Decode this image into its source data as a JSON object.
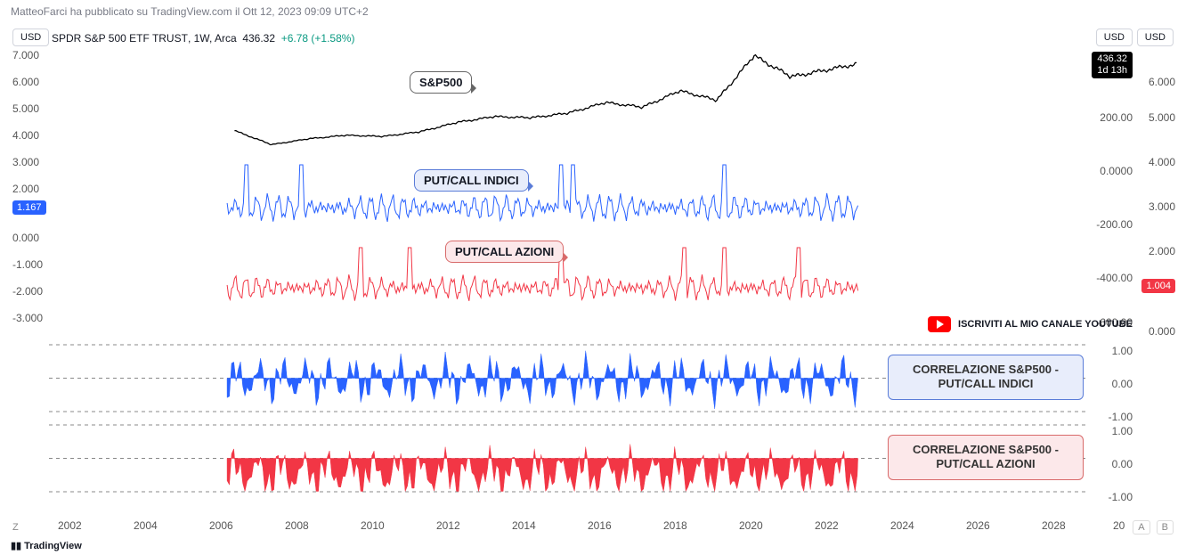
{
  "header": {
    "publisher": "MatteoFarci",
    "text_mid": " ha pubblicato su ",
    "site": "TradingView.com",
    "text_end": " il Ott 12, 2023 09:09 UTC+2"
  },
  "symbol_line": {
    "name": "SPDR S&P 500 ETF TRUST",
    "interval": "1W",
    "exchange": "Arca",
    "last": "436.32",
    "change": "+6.78",
    "pct": "(+1.58%)"
  },
  "badges": {
    "usd": "USD",
    "price_main": "436.32",
    "price_sub": "1d 13h",
    "left_blue": "1.167",
    "right_red": "1.004"
  },
  "callouts": {
    "sp500": "S&P500",
    "pc_indici": "PUT/CALL INDICI",
    "pc_azioni": "PUT/CALL AZIONI"
  },
  "youtube_text": "ISCRIVITI AL MIO CANALE YOUTUBE",
  "corr_labels": {
    "indici": "CORRELAZIONE S&P500 - PUT/CALL INDICI",
    "azioni": "CORRELAZIONE S&P500 - PUT/CALL AZIONI"
  },
  "left_axis": {
    "ticks": [
      "7.000",
      "6.000",
      "5.000",
      "4.000",
      "3.000",
      "2.000",
      "0.000",
      "-1.000",
      "-2.000",
      "-3.000"
    ],
    "positions": [
      55,
      85,
      115,
      145,
      175,
      205,
      260,
      290,
      320,
      350
    ]
  },
  "right_axis1": {
    "ticks": [
      "6.000",
      "5.000",
      "4.000",
      "3.000",
      "2.000",
      "0.000"
    ],
    "positions": [
      85,
      125,
      175,
      225,
      275,
      365
    ]
  },
  "right_axis2": {
    "ticks": [
      "200.00",
      "0.0000",
      "-200.00",
      "-400.00",
      "-600.00"
    ],
    "positions": [
      125,
      185,
      245,
      305,
      355
    ]
  },
  "corr_axis": {
    "ticks": [
      "1.00",
      "0.00",
      "-1.00"
    ]
  },
  "xaxis": {
    "years": [
      "2002",
      "2004",
      "2006",
      "2008",
      "2010",
      "2012",
      "2014",
      "2016",
      "2018",
      "2020",
      "2022",
      "2024",
      "2026",
      "2028",
      "20"
    ],
    "positions": [
      65,
      150,
      235,
      320,
      405,
      490,
      575,
      660,
      745,
      830,
      915,
      1000,
      1085,
      1170,
      1250
    ]
  },
  "attribution": "TradingView",
  "z_label": "Z",
  "ab_labels": [
    "A",
    "B"
  ],
  "chart_x_range": [
    2002,
    2030
  ],
  "series": {
    "sp500": {
      "color": "#000000",
      "stroke_width": 1.3,
      "y_range_display": [
        100,
        470
      ],
      "data_years": [
        2007,
        2008,
        2009,
        2010,
        2011,
        2012,
        2013,
        2014,
        2015,
        2016,
        2017,
        2018,
        2019,
        2020,
        2021,
        2022,
        2023.8
      ],
      "data_vals": [
        150,
        90,
        115,
        130,
        125,
        145,
        185,
        210,
        205,
        225,
        270,
        250,
        320,
        280,
        470,
        380,
        436
      ]
    },
    "pc_indici": {
      "color": "#2962ff",
      "stroke_width": 1,
      "baseline": 1.2,
      "amp": 0.45,
      "spikes_years": [
        2007.3,
        2008.8,
        2015.8,
        2016.1,
        2020.2
      ],
      "spike_amp": 1.6
    },
    "pc_azioni": {
      "color": "#f23645",
      "stroke_width": 1,
      "baseline": 0.65,
      "amp": 0.25,
      "spikes_years": [
        2010.4,
        2011.7,
        2015.8,
        2019.1,
        2020.2,
        2022.2
      ],
      "spike_amp": 0.9
    },
    "corr_indici": {
      "color": "#2962ff",
      "range": [
        -1,
        1
      ],
      "bias": -0.05
    },
    "corr_azioni": {
      "color": "#f23645",
      "range": [
        -1,
        1
      ],
      "bias": -0.45
    }
  }
}
